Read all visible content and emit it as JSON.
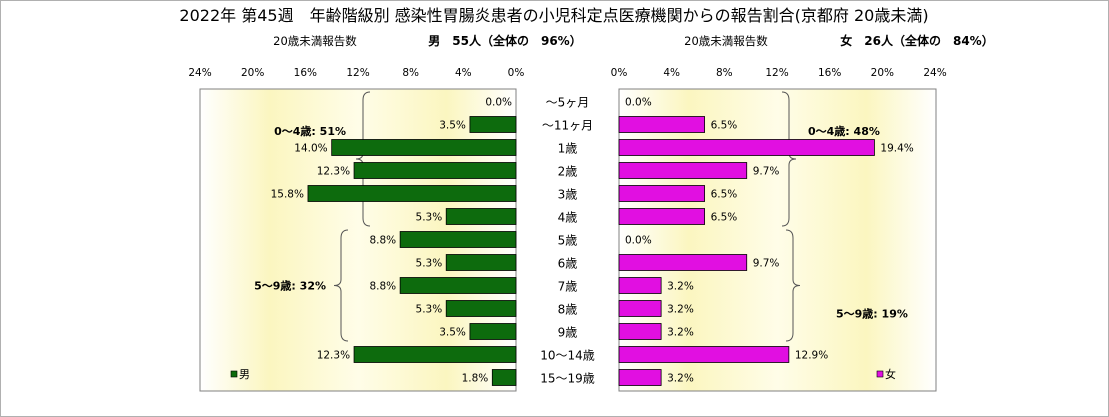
{
  "chart_data": {
    "type": "bar",
    "title": "2022年 第45週　年齢階級別 感染性胃腸炎患者の小児科定点医療機関からの報告割合(京都府 20歳未満)",
    "categories": [
      "～5ヶ月",
      "～11ヶ月",
      "1歳",
      "2歳",
      "3歳",
      "4歳",
      "5歳",
      "6歳",
      "7歳",
      "8歳",
      "9歳",
      "10～14歳",
      "15～19歳"
    ],
    "xlim": [
      0,
      24
    ],
    "xticks": [
      "24%",
      "20%",
      "16%",
      "12%",
      "8%",
      "4%",
      "0%"
    ],
    "xticks_right": [
      "0%",
      "4%",
      "8%",
      "12%",
      "16%",
      "20%",
      "24%"
    ],
    "series": [
      {
        "name": "男",
        "color": "#0d6b0d",
        "values": [
          0.0,
          3.5,
          14.0,
          12.3,
          15.8,
          5.3,
          8.8,
          5.3,
          8.8,
          5.3,
          3.5,
          12.3,
          1.8
        ],
        "labels": [
          "0.0%",
          "3.5%",
          "14.0%",
          "12.3%",
          "15.8%",
          "5.3%",
          "8.8%",
          "5.3%",
          "8.8%",
          "5.3%",
          "3.5%",
          "12.3%",
          "1.8%"
        ],
        "subtitle_left": "20歳未満報告数",
        "subtitle_right": "男　55人（全体の　96%）",
        "groups": [
          {
            "label": "0～4歳: 51%",
            "from": 0,
            "to": 5
          },
          {
            "label": "5～9歳: 32%",
            "from": 6,
            "to": 10
          }
        ]
      },
      {
        "name": "女",
        "color": "#e10fe1",
        "values": [
          0.0,
          6.5,
          19.4,
          9.7,
          6.5,
          6.5,
          0.0,
          9.7,
          3.2,
          3.2,
          3.2,
          12.9,
          3.2
        ],
        "labels": [
          "0.0%",
          "6.5%",
          "19.4%",
          "9.7%",
          "6.5%",
          "6.5%",
          "0.0%",
          "9.7%",
          "3.2%",
          "3.2%",
          "3.2%",
          "12.9%",
          "3.2%"
        ],
        "subtitle_left": "20歳未満報告数",
        "subtitle_right": "女　26人（全体の　84%）",
        "groups": [
          {
            "label": "0～4歳: 48%",
            "from": 0,
            "to": 5
          },
          {
            "label": "5～9歳: 19%",
            "from": 6,
            "to": 10
          }
        ]
      }
    ],
    "grid": false
  }
}
